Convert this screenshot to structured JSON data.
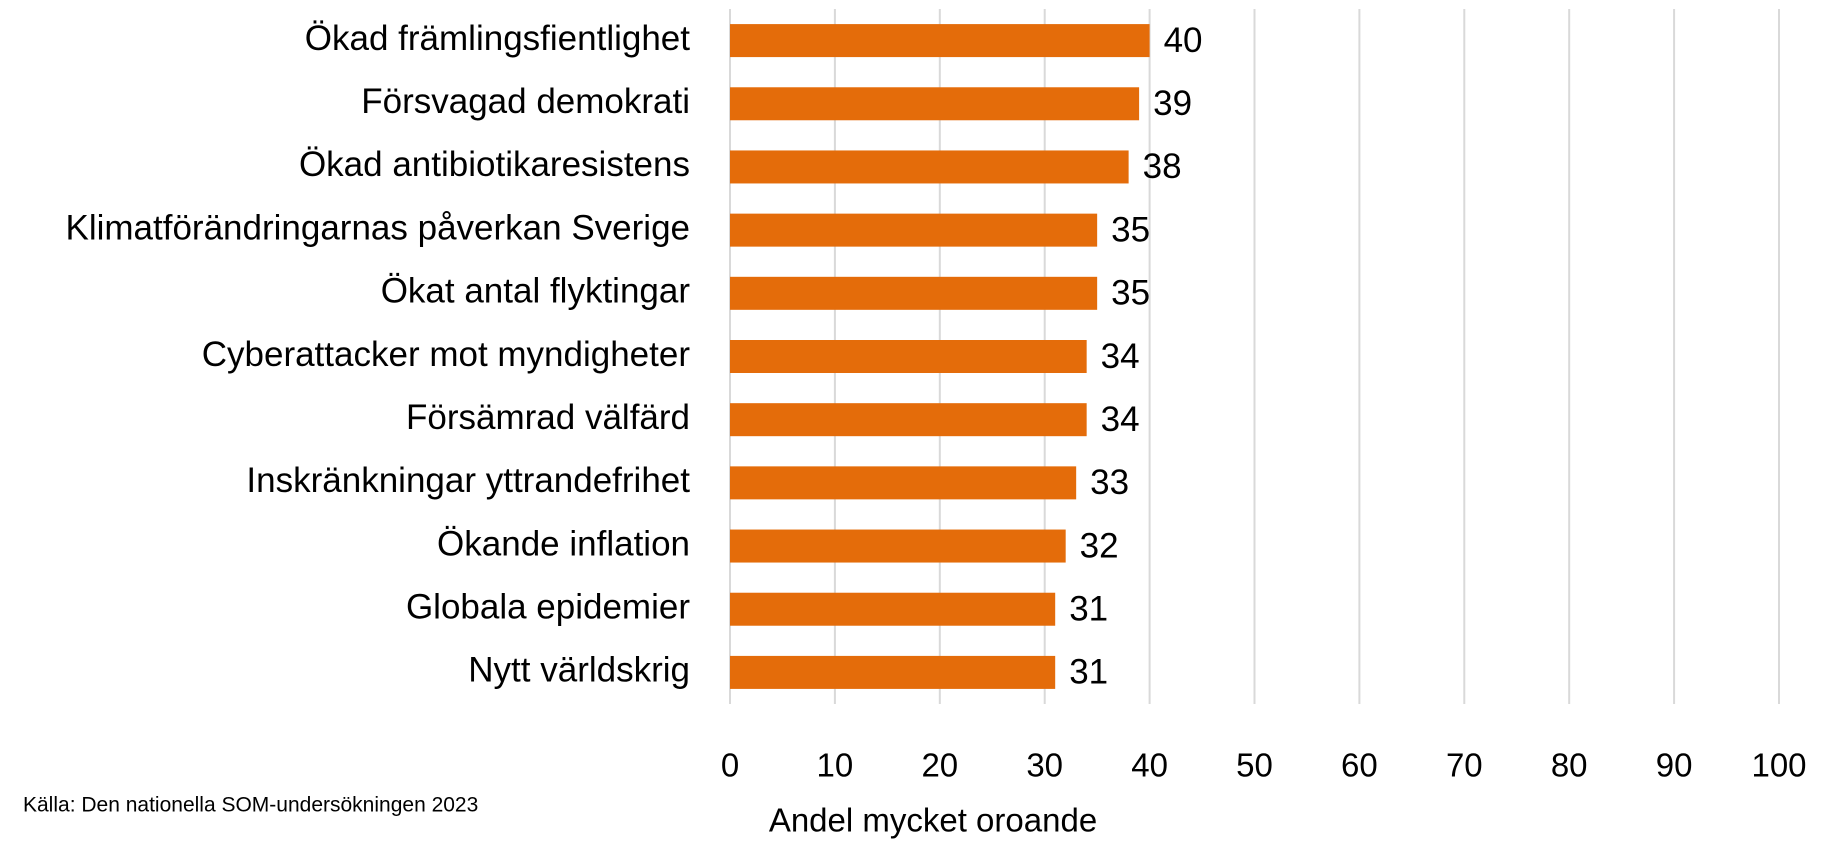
{
  "chart_data": {
    "type": "hbar",
    "categories": [
      "Ökad främlingsfientlighet",
      "Försvagad demokrati",
      "Ökad antibiotikaresistens",
      "Klimatförändringarnas påverkan Sverige",
      "Ökat antal flyktingar",
      "Cyberattacker mot myndigheter",
      "Försämrad välfärd",
      "Inskränkningar yttrandefrihet",
      "Ökande inflation",
      "Globala epidemier",
      "Nytt världskrig"
    ],
    "values": [
      40,
      39,
      38,
      35,
      35,
      34,
      34,
      33,
      32,
      31,
      31
    ],
    "color": "#e46c0a",
    "xlim": [
      0,
      100
    ],
    "xticks": [
      0,
      10,
      20,
      30,
      40,
      50,
      60,
      70,
      80,
      90,
      100
    ],
    "grid": true,
    "xlabel": "Andel mycket oroande",
    "source": "Källa: Den nationella SOM-undersökningen 2023"
  }
}
